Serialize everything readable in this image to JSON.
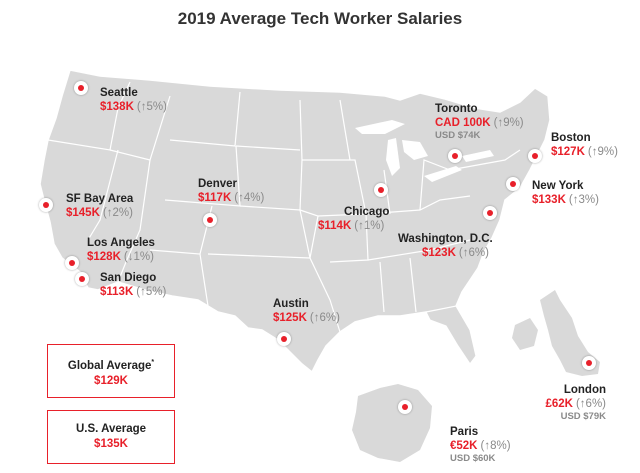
{
  "title": "2019 Average Tech Worker Salaries",
  "colors": {
    "accent": "#e8202a",
    "land": "#d9d9d9",
    "border": "#ffffff",
    "muted": "#8a8a8a"
  },
  "cities": {
    "seattle": {
      "name": "Seattle",
      "salary": "$138K",
      "change": "(↑5%)"
    },
    "sf": {
      "name": "SF Bay Area",
      "salary": "$145K",
      "change": "(↑2%)"
    },
    "la": {
      "name": "Los Angeles",
      "salary": "$128K",
      "change": "(↓1%)"
    },
    "sd": {
      "name": "San Diego",
      "salary": "$113K",
      "change": "(↑5%)"
    },
    "denver": {
      "name": "Denver",
      "salary": "$117K",
      "change": "(↑4%)"
    },
    "chicago": {
      "name": "Chicago",
      "salary": "$114K",
      "change": "(↑1%)"
    },
    "austin": {
      "name": "Austin",
      "salary": "$125K",
      "change": "(↑6%)"
    },
    "toronto": {
      "name": "Toronto",
      "salary": "CAD 100K",
      "change": "(↑9%)",
      "usd": "USD $74K"
    },
    "boston": {
      "name": "Boston",
      "salary": "$127K",
      "change": "(↑9%)"
    },
    "newyork": {
      "name": "New York",
      "salary": "$133K",
      "change": "(↑3%)"
    },
    "washington": {
      "name": "Washington, D.C.",
      "salary": "$123K",
      "change": "(↑6%)"
    },
    "london": {
      "name": "London",
      "salary": "£62K",
      "change": "(↑6%)",
      "usd": "USD $79K"
    },
    "paris": {
      "name": "Paris",
      "salary": "€52K",
      "change": "(↑8%)",
      "usd": "USD $60K"
    }
  },
  "global_average": {
    "label": "Global Average",
    "footnote": "*",
    "value": "$129K"
  },
  "us_average": {
    "label": "U.S. Average",
    "value": "$135K"
  }
}
